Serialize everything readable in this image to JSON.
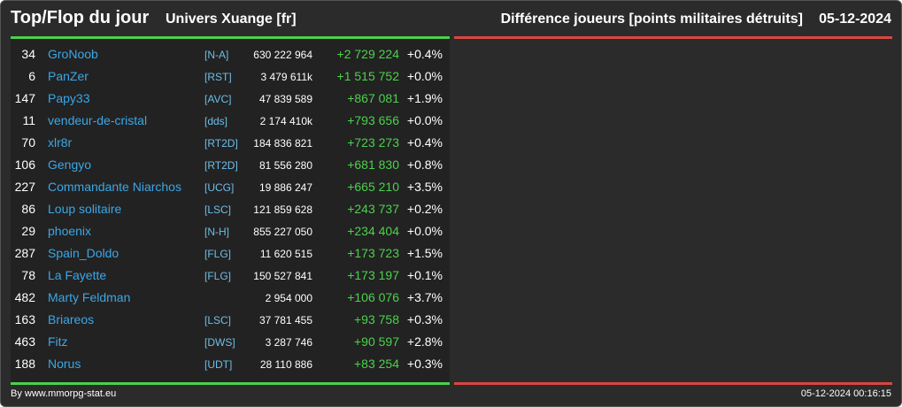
{
  "header": {
    "title": "Top/Flop du jour",
    "universe": "Univers Xuange [fr]",
    "subtitle": "Différence joueurs [points militaires détruits]",
    "date": "05-12-2024"
  },
  "colors": {
    "background": "#2b2b2b",
    "panel": "#222222",
    "top_accent": "#4cd14c",
    "flop_accent": "#d9463f",
    "player_link": "#3ba7e6",
    "positive": "#4cd14c"
  },
  "top": [
    {
      "rank": "34",
      "name": "GroNoob",
      "alliance": "[N-A]",
      "points": "630 222 964",
      "diff": "+2 729 224",
      "pct": "+0.4%"
    },
    {
      "rank": "6",
      "name": "PanZer",
      "alliance": "[RST]",
      "points": "3 479 611k",
      "diff": "+1 515 752",
      "pct": "+0.0%"
    },
    {
      "rank": "147",
      "name": "Papy33",
      "alliance": "[AVC]",
      "points": "47 839 589",
      "diff": "+867 081",
      "pct": "+1.9%"
    },
    {
      "rank": "11",
      "name": "vendeur-de-cristal",
      "alliance": "[dds]",
      "points": "2 174 410k",
      "diff": "+793 656",
      "pct": "+0.0%"
    },
    {
      "rank": "70",
      "name": "xlr8r",
      "alliance": "[RT2D]",
      "points": "184 836 821",
      "diff": "+723 273",
      "pct": "+0.4%"
    },
    {
      "rank": "106",
      "name": "Gengyo",
      "alliance": "[RT2D]",
      "points": "81 556 280",
      "diff": "+681 830",
      "pct": "+0.8%"
    },
    {
      "rank": "227",
      "name": "Commandante Niarchos",
      "alliance": "[UCG]",
      "points": "19 886 247",
      "diff": "+665 210",
      "pct": "+3.5%"
    },
    {
      "rank": "86",
      "name": "Loup solitaire",
      "alliance": "[LSC]",
      "points": "121 859 628",
      "diff": "+243 737",
      "pct": "+0.2%"
    },
    {
      "rank": "29",
      "name": "phoenix",
      "alliance": "[N-H]",
      "points": "855 227 050",
      "diff": "+234 404",
      "pct": "+0.0%"
    },
    {
      "rank": "287",
      "name": "Spain_Doldo",
      "alliance": "[FLG]",
      "points": "11 620 515",
      "diff": "+173 723",
      "pct": "+1.5%"
    },
    {
      "rank": "78",
      "name": "La Fayette",
      "alliance": "[FLG]",
      "points": "150 527 841",
      "diff": "+173 197",
      "pct": "+0.1%"
    },
    {
      "rank": "482",
      "name": "Marty Feldman",
      "alliance": "",
      "points": "2 954 000",
      "diff": "+106 076",
      "pct": "+3.7%"
    },
    {
      "rank": "163",
      "name": "Briareos",
      "alliance": "[LSC]",
      "points": "37 781 455",
      "diff": "+93 758",
      "pct": "+0.3%"
    },
    {
      "rank": "463",
      "name": "Fitz",
      "alliance": "[DWS]",
      "points": "3 287 746",
      "diff": "+90 597",
      "pct": "+2.8%"
    },
    {
      "rank": "188",
      "name": "Norus",
      "alliance": "[UDT]",
      "points": "28 110 886",
      "diff": "+83 254",
      "pct": "+0.3%"
    }
  ],
  "footer": {
    "credit": "By www.mmorpg-stat.eu",
    "timestamp": "05-12-2024 00:16:15"
  }
}
